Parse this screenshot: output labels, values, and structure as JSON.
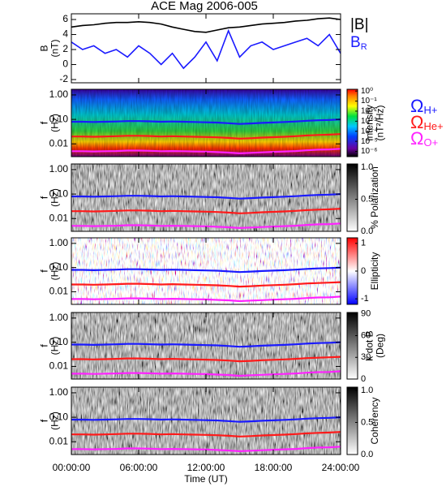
{
  "chart_data": [
    {
      "type": "line",
      "title": "ACE Mag 2006-005",
      "ylabel": [
        "B",
        "(nT)"
      ],
      "x": [
        0,
        1,
        2,
        3,
        4,
        5,
        6,
        7,
        8,
        9,
        10,
        11,
        12,
        13,
        14,
        15,
        16,
        17,
        18,
        19,
        20,
        21,
        22,
        23,
        24
      ],
      "xlim": [
        0,
        24
      ],
      "xticks": [
        0,
        6,
        12,
        18,
        24
      ],
      "ylim": [
        -2.43,
        6.76
      ],
      "yticks": [
        -2,
        0,
        2,
        4,
        6
      ],
      "series": [
        {
          "name": "|B|",
          "color": "#000000",
          "values": [
            5.0,
            5.2,
            5.3,
            5.5,
            5.6,
            5.6,
            5.7,
            5.6,
            5.4,
            5.0,
            4.7,
            4.4,
            4.3,
            4.6,
            4.9,
            5.0,
            5.2,
            5.4,
            5.5,
            5.6,
            5.8,
            5.9,
            6.1,
            6.2,
            6.0
          ]
        },
        {
          "name": "B",
          "subscript": "R",
          "color": "#1a1aff",
          "values": [
            3.0,
            2.0,
            2.5,
            1.5,
            2.0,
            1.0,
            2.5,
            1.5,
            0.0,
            1.5,
            -0.5,
            1.0,
            3.0,
            0.5,
            4.5,
            1.0,
            2.5,
            3.0,
            2.0,
            2.5,
            3.0,
            3.5,
            2.5,
            4.0,
            1.5
          ]
        }
      ]
    },
    {
      "type": "spectrogram",
      "ylabel": [
        "f",
        "(Hz)"
      ],
      "ylog": true,
      "ylim": [
        0.003,
        1.7
      ],
      "yticks": [
        {
          "value": 0.01,
          "label": "0.01"
        },
        {
          "value": 0.1,
          "label": "0.10"
        },
        {
          "value": 1,
          "label": "1.00"
        }
      ],
      "xlim": [
        0,
        24
      ],
      "xticks": [
        0,
        6,
        12,
        18,
        24
      ],
      "colormap": "rainbow",
      "x": [
        0,
        1,
        2,
        3,
        4,
        5,
        6,
        7,
        8,
        9,
        10,
        11,
        12,
        13,
        14,
        15,
        16,
        17,
        18,
        19,
        20,
        21,
        22,
        23,
        24
      ],
      "series": [
        {
          "name": "Ω",
          "subscript": "H+",
          "color": "#1a1aff",
          "values": [
            0.08,
            0.08,
            0.078,
            0.08,
            0.082,
            0.085,
            0.085,
            0.083,
            0.08,
            0.082,
            0.08,
            0.078,
            0.076,
            0.074,
            0.07,
            0.065,
            0.068,
            0.072,
            0.075,
            0.078,
            0.082,
            0.088,
            0.092,
            0.095,
            0.1
          ]
        },
        {
          "name": "Ω",
          "subscript": "He+",
          "color": "#ff1a1a",
          "values": [
            0.02,
            0.02,
            0.0195,
            0.02,
            0.0205,
            0.0213,
            0.0213,
            0.0208,
            0.02,
            0.0205,
            0.02,
            0.0195,
            0.019,
            0.0185,
            0.0175,
            0.0163,
            0.017,
            0.018,
            0.0188,
            0.0195,
            0.0205,
            0.022,
            0.023,
            0.0238,
            0.025
          ]
        },
        {
          "name": "Ω",
          "subscript": "O+",
          "color": "#ff22ff",
          "values": [
            0.005,
            0.005,
            0.0049,
            0.005,
            0.0051,
            0.0053,
            0.0053,
            0.0052,
            0.005,
            0.0051,
            0.005,
            0.0049,
            0.0048,
            0.0046,
            0.0044,
            0.0041,
            0.0043,
            0.0045,
            0.0047,
            0.0049,
            0.0051,
            0.0055,
            0.0058,
            0.0059,
            0.0063
          ]
        }
      ],
      "colorbar": {
        "label": [
          "Intensity",
          "(nT²/Hz)"
        ],
        "log": true,
        "clim": [
          3e-07,
          1.5
        ],
        "ticks": [
          {
            "value": 1,
            "label": "10⁰"
          },
          {
            "value": 0.1,
            "label": "10⁻¹"
          },
          {
            "value": 0.01,
            "label": "10⁻²"
          },
          {
            "value": 0.001,
            "label": "10⁻³"
          },
          {
            "value": 0.0001,
            "label": "10⁻⁴"
          },
          {
            "value": 1e-05,
            "label": "10⁻⁵"
          },
          {
            "value": 1e-06,
            "label": "10⁻⁶"
          }
        ]
      }
    },
    {
      "type": "spectrogram",
      "ylabel": [
        "f",
        "(Hz)"
      ],
      "ylog": true,
      "ylim": [
        0.003,
        1.7
      ],
      "yticks": [
        {
          "value": 0.01,
          "label": "0.01"
        },
        {
          "value": 0.1,
          "label": "0.10"
        },
        {
          "value": 1,
          "label": "1.00"
        }
      ],
      "xlim": [
        0,
        24
      ],
      "xticks": [
        0,
        6,
        12,
        18,
        24
      ],
      "colormap": "gray",
      "colorbar": {
        "label": [
          "% Polarization"
        ],
        "log": false,
        "clim": [
          0,
          1.05
        ],
        "ticks": [
          {
            "value": 0,
            "label": "0.0"
          },
          {
            "value": 0.5,
            "label": "0.5"
          },
          {
            "value": 1,
            "label": "1.0"
          }
        ]
      }
    },
    {
      "type": "spectrogram",
      "ylabel": [
        "f",
        "(Hz)"
      ],
      "ylog": true,
      "ylim": [
        0.003,
        1.7
      ],
      "yticks": [
        {
          "value": 0.01,
          "label": "0.01"
        },
        {
          "value": 0.1,
          "label": "0.10"
        },
        {
          "value": 1,
          "label": "1.00"
        }
      ],
      "xlim": [
        0,
        24
      ],
      "xticks": [
        0,
        6,
        12,
        18,
        24
      ],
      "colormap": "bwr",
      "colorbar": {
        "label": [
          "Ellipticity"
        ],
        "log": false,
        "clim": [
          -1.2,
          1.2
        ],
        "ticks": [
          -1,
          0,
          1
        ]
      }
    },
    {
      "type": "spectrogram",
      "ylabel": [
        "f",
        "(Hz)"
      ],
      "ylog": true,
      "ylim": [
        0.003,
        1.7
      ],
      "yticks": [
        {
          "value": 0.01,
          "label": "0.01"
        },
        {
          "value": 0.1,
          "label": "0.10"
        },
        {
          "value": 1,
          "label": "1.00"
        }
      ],
      "xlim": [
        0,
        24
      ],
      "xticks": [
        0,
        6,
        12,
        18,
        24
      ],
      "colormap": "gray",
      "colorbar": {
        "label": [
          "k dot B",
          "(Deg)"
        ],
        "log": false,
        "clim": [
          0,
          92
        ],
        "ticks": [
          0,
          30,
          60,
          90
        ]
      }
    },
    {
      "type": "spectrogram",
      "ylabel": [
        "f",
        "(Hz)"
      ],
      "ylog": true,
      "ylim": [
        0.003,
        1.7
      ],
      "yticks": [
        {
          "value": 0.01,
          "label": "0.01"
        },
        {
          "value": 0.1,
          "label": "0.10"
        },
        {
          "value": 1,
          "label": "1.00"
        }
      ],
      "xlim": [
        0,
        24
      ],
      "colormap": "gray",
      "xlabel": "Time (UT)",
      "xticks": [
        {
          "value": 0,
          "label": "00:00:00"
        },
        {
          "value": 6,
          "label": "06:00:00"
        },
        {
          "value": 12,
          "label": "12:00:00"
        },
        {
          "value": 18,
          "label": "18:00:00"
        },
        {
          "value": 24,
          "label": "24:00:00"
        }
      ],
      "colorbar": {
        "label": [
          "Coherency"
        ],
        "log": false,
        "clim": [
          0,
          1.05
        ],
        "ticks": [
          {
            "value": 0,
            "label": "0.0"
          },
          {
            "value": 0.5,
            "label": "0.5"
          },
          {
            "value": 1,
            "label": "1.0"
          }
        ]
      }
    }
  ]
}
